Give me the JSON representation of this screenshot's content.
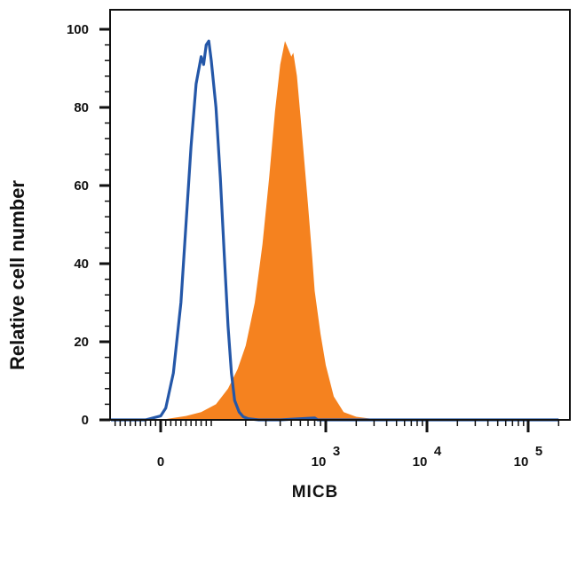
{
  "chart_data": {
    "type": "area",
    "title": "",
    "xlabel": "MICB",
    "ylabel": "Relative cell number",
    "ylim": [
      0,
      105
    ],
    "yticks": [
      0,
      20,
      40,
      60,
      80,
      100
    ],
    "x_scale": "biexponential",
    "xlim": [
      -100,
      200000
    ],
    "xticks": [
      {
        "value": 0,
        "base": "0",
        "exp": ""
      },
      {
        "value": 1000,
        "base": "10",
        "exp": "3"
      },
      {
        "value": 10000,
        "base": "10",
        "exp": "4"
      },
      {
        "value": 100000,
        "base": "10",
        "exp": "5"
      }
    ],
    "grid": false,
    "legend": "none",
    "series": [
      {
        "style": "filled",
        "color": "#F5821F",
        "x": [
          -100,
          0,
          50,
          80,
          110,
          140,
          170,
          200,
          240,
          280,
          320,
          360,
          400,
          440,
          470,
          500,
          520,
          560,
          600,
          650,
          700,
          760,
          800,
          900,
          1000,
          1200,
          1500,
          2000,
          3000,
          5000,
          20000,
          200000
        ],
        "y": [
          0,
          0,
          1,
          2,
          4,
          8,
          13,
          19,
          30,
          45,
          62,
          79,
          91,
          97,
          95,
          93,
          94,
          88,
          78,
          66,
          55,
          42,
          33,
          22,
          14,
          6,
          2,
          0.8,
          0.2,
          0,
          0,
          0
        ]
      },
      {
        "style": "line",
        "color": "#2457A8",
        "x": [
          -100,
          -30,
          0,
          10,
          25,
          40,
          50,
          60,
          70,
          80,
          85,
          90,
          95,
          100,
          110,
          120,
          130,
          140,
          150,
          160,
          175,
          190,
          210,
          260,
          400,
          800,
          850,
          5000,
          200000
        ],
        "y": [
          0,
          0,
          1,
          3,
          12,
          30,
          50,
          70,
          86,
          93,
          91,
          96,
          97,
          92,
          80,
          62,
          42,
          24,
          12,
          5,
          2,
          0.8,
          0.3,
          0,
          0,
          0.5,
          0,
          0,
          0
        ]
      }
    ]
  }
}
